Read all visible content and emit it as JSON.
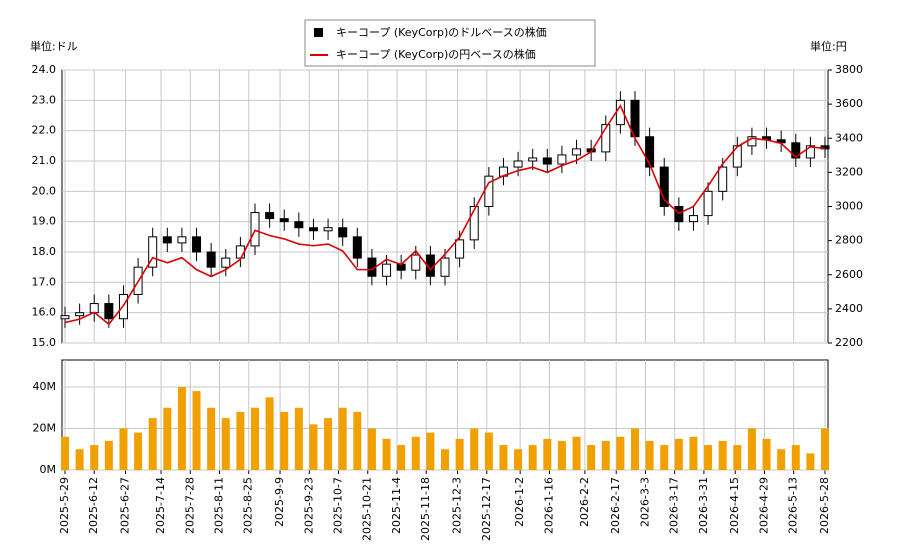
{
  "chart_data": [
    {
      "type": "candlestick",
      "y_unit": "単位:ドル",
      "y2_unit": "単位:円",
      "x": [
        "2025-05-29",
        "2025-06-05",
        "2025-06-12",
        "2025-06-19",
        "2025-06-26",
        "2025-07-03",
        "2025-07-10",
        "2025-07-17",
        "2025-07-24",
        "2025-07-31",
        "2025-08-07",
        "2025-08-14",
        "2025-08-21",
        "2025-08-28",
        "2025-09-04",
        "2025-09-11",
        "2025-09-18",
        "2025-09-25",
        "2025-10-02",
        "2025-10-09",
        "2025-10-16",
        "2025-10-23",
        "2025-10-30",
        "2025-11-06",
        "2025-11-13",
        "2025-11-20",
        "2025-11-27",
        "2025-12-04",
        "2025-12-11",
        "2025-12-18",
        "2025-12-25",
        "2026-01-01",
        "2026-01-08",
        "2026-01-15",
        "2026-01-22",
        "2026-01-29",
        "2026-02-05",
        "2026-02-12",
        "2026-02-19",
        "2026-02-26",
        "2026-03-05",
        "2026-03-12",
        "2026-03-19",
        "2026-03-26",
        "2026-04-02",
        "2026-04-09",
        "2026-04-16",
        "2026-04-23",
        "2026-04-30",
        "2026-05-07",
        "2026-05-14",
        "2026-05-21",
        "2026-05-28"
      ],
      "ohlc": {
        "name": "キーコープ (KeyCorp)のドルベースの株価",
        "color": "#000000",
        "open": [
          15.8,
          15.9,
          16.0,
          16.3,
          15.8,
          16.6,
          17.5,
          18.5,
          18.3,
          18.5,
          18.0,
          17.5,
          17.8,
          18.2,
          19.3,
          19.1,
          19.0,
          18.8,
          18.7,
          18.8,
          18.5,
          17.8,
          17.2,
          17.6,
          17.4,
          17.9,
          17.2,
          17.8,
          18.4,
          19.5,
          20.5,
          20.8,
          21.0,
          21.1,
          20.9,
          21.2,
          21.4,
          21.3,
          22.2,
          23.0,
          21.8,
          20.8,
          19.5,
          19.0,
          19.2,
          20.0,
          20.8,
          21.5,
          21.8,
          21.7,
          21.6,
          21.1,
          21.5
        ],
        "high": [
          16.2,
          16.3,
          16.6,
          16.6,
          16.9,
          17.8,
          18.8,
          18.8,
          18.8,
          18.8,
          18.3,
          18.1,
          18.5,
          19.6,
          19.6,
          19.4,
          19.3,
          19.1,
          19.1,
          19.1,
          18.8,
          18.1,
          17.9,
          17.9,
          18.2,
          18.2,
          18.1,
          18.7,
          19.8,
          20.8,
          21.1,
          21.3,
          21.4,
          21.4,
          21.5,
          21.7,
          21.7,
          22.5,
          23.3,
          23.3,
          22.1,
          21.1,
          19.8,
          19.5,
          20.3,
          21.1,
          21.8,
          22.1,
          22.1,
          22.0,
          21.9,
          21.8,
          21.8
        ],
        "low": [
          15.5,
          15.6,
          15.7,
          15.5,
          15.5,
          16.3,
          17.2,
          18.0,
          18.0,
          17.7,
          17.2,
          17.2,
          17.5,
          17.9,
          18.8,
          18.7,
          18.5,
          18.4,
          18.4,
          18.2,
          17.5,
          16.9,
          16.9,
          17.1,
          17.1,
          16.9,
          16.9,
          17.5,
          18.1,
          19.2,
          20.2,
          20.5,
          20.7,
          20.6,
          20.6,
          20.9,
          21.0,
          21.0,
          21.9,
          21.5,
          20.5,
          19.2,
          18.7,
          18.7,
          18.9,
          19.7,
          20.5,
          21.2,
          21.4,
          21.3,
          20.8,
          20.8,
          21.1
        ],
        "close": [
          15.9,
          16.0,
          16.3,
          15.8,
          16.6,
          17.5,
          18.5,
          18.3,
          18.5,
          18.0,
          17.5,
          17.8,
          18.2,
          19.3,
          19.1,
          19.0,
          18.8,
          18.7,
          18.8,
          18.5,
          17.8,
          17.2,
          17.6,
          17.4,
          17.9,
          17.2,
          17.8,
          18.4,
          19.5,
          20.5,
          20.8,
          21.0,
          21.1,
          20.9,
          21.2,
          21.4,
          21.3,
          22.2,
          23.0,
          21.8,
          20.8,
          19.5,
          19.0,
          19.2,
          20.0,
          20.8,
          21.5,
          21.8,
          21.7,
          21.6,
          21.1,
          21.5,
          21.4
        ]
      },
      "line": {
        "name": "キーコープ (KeyCorp)の円ベースの株価",
        "color": "#dd0000",
        "axis": "y2",
        "values": [
          2320,
          2340,
          2380,
          2310,
          2420,
          2560,
          2700,
          2670,
          2700,
          2630,
          2590,
          2630,
          2690,
          2860,
          2830,
          2810,
          2780,
          2770,
          2780,
          2740,
          2630,
          2630,
          2690,
          2660,
          2740,
          2630,
          2720,
          2820,
          2980,
          3140,
          3180,
          3210,
          3230,
          3200,
          3240,
          3270,
          3320,
          3460,
          3590,
          3400,
          3250,
          3040,
          2960,
          3000,
          3120,
          3250,
          3350,
          3400,
          3390,
          3370,
          3290,
          3350,
          3340
        ]
      },
      "ylim": [
        15,
        24
      ],
      "yticks": [
        {
          "value": 15,
          "label": "15.0"
        },
        {
          "value": 16,
          "label": "16.0"
        },
        {
          "value": 17,
          "label": "17.0"
        },
        {
          "value": 18,
          "label": "18.0"
        },
        {
          "value": 19,
          "label": "19.0"
        },
        {
          "value": 20,
          "label": "20.0"
        },
        {
          "value": 21,
          "label": "21.0"
        },
        {
          "value": 22,
          "label": "22.0"
        },
        {
          "value": 23,
          "label": "23.0"
        },
        {
          "value": 24,
          "label": "24.0"
        }
      ],
      "y2lim": [
        2200,
        3800
      ],
      "y2ticks": [
        2200,
        2400,
        2600,
        2800,
        3000,
        3200,
        3400,
        3600,
        3800
      ],
      "grid": true
    },
    {
      "type": "bar",
      "color": "#f0a000",
      "values": [
        16000000,
        10000000,
        12000000,
        14000000,
        20000000,
        18000000,
        25000000,
        30000000,
        40000000,
        38000000,
        30000000,
        25000000,
        28000000,
        30000000,
        35000000,
        28000000,
        30000000,
        22000000,
        25000000,
        30000000,
        28000000,
        20000000,
        15000000,
        12000000,
        16000000,
        18000000,
        10000000,
        15000000,
        20000000,
        18000000,
        12000000,
        10000000,
        12000000,
        15000000,
        14000000,
        16000000,
        12000000,
        14000000,
        16000000,
        20000000,
        14000000,
        12000000,
        15000000,
        16000000,
        12000000,
        14000000,
        12000000,
        20000000,
        15000000,
        10000000,
        12000000,
        8000000,
        20000000
      ],
      "ylim": [
        0,
        53000000
      ],
      "yticks": [
        {
          "value": 0,
          "label": "0M"
        },
        {
          "value": 20000000,
          "label": "20M"
        },
        {
          "value": 40000000,
          "label": "40M"
        }
      ],
      "xlim": [
        "2025-05-29",
        "2026-05-28"
      ],
      "xticks": [
        {
          "value": "2025-05-29",
          "label": "2025-5-29"
        },
        {
          "value": "2025-06-12",
          "label": "2025-6-12"
        },
        {
          "value": "2025-06-27",
          "label": "2025-6-27"
        },
        {
          "value": "2025-07-14",
          "label": "2025-7-14"
        },
        {
          "value": "2025-07-28",
          "label": "2025-7-28"
        },
        {
          "value": "2025-08-11",
          "label": "2025-8-11"
        },
        {
          "value": "2025-08-25",
          "label": "2025-8-25"
        },
        {
          "value": "2025-09-09",
          "label": "2025-9-9"
        },
        {
          "value": "2025-09-23",
          "label": "2025-9-23"
        },
        {
          "value": "2025-10-07",
          "label": "2025-10-7"
        },
        {
          "value": "2025-10-21",
          "label": "2025-10-21"
        },
        {
          "value": "2025-11-04",
          "label": "2025-11-4"
        },
        {
          "value": "2025-11-18",
          "label": "2025-11-18"
        },
        {
          "value": "2025-12-03",
          "label": "2025-12-3"
        },
        {
          "value": "2025-12-17",
          "label": "2025-12-17"
        },
        {
          "value": "2026-01-02",
          "label": "2026-1-2"
        },
        {
          "value": "2026-01-16",
          "label": "2026-1-16"
        },
        {
          "value": "2026-02-02",
          "label": "2026-2-2"
        },
        {
          "value": "2026-02-17",
          "label": "2026-2-17"
        },
        {
          "value": "2026-03-03",
          "label": "2026-3-3"
        },
        {
          "value": "2026-03-17",
          "label": "2026-3-17"
        },
        {
          "value": "2026-03-31",
          "label": "2026-3-31"
        },
        {
          "value": "2026-04-15",
          "label": "2026-4-15"
        },
        {
          "value": "2026-04-29",
          "label": "2026-4-29"
        },
        {
          "value": "2026-05-13",
          "label": "2026-5-13"
        },
        {
          "value": "2026-05-28",
          "label": "2026-5-28"
        }
      ],
      "grid": true
    }
  ]
}
